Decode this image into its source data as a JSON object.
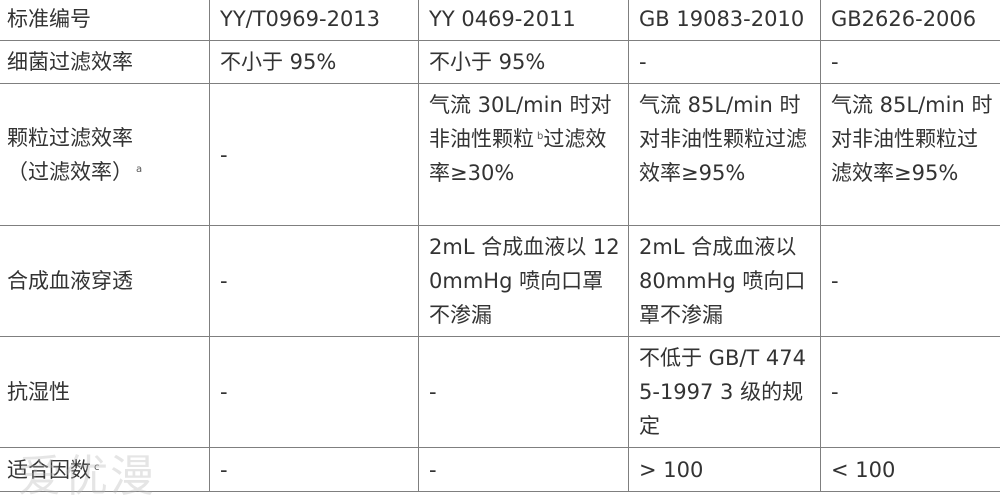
{
  "table": {
    "header": {
      "label": "标准编号",
      "cols": [
        "YY/T0969-2013",
        "YY 0469-2011",
        "GB 19083-2010",
        "GB2626-2006"
      ]
    },
    "rows": [
      {
        "label": "细菌过滤效率",
        "cells": [
          "不小于 95%",
          "不小于 95%",
          "-",
          "-"
        ]
      },
      {
        "label": "颗粒过滤效率",
        "label_line2": "（过滤效率）",
        "label_note": "a",
        "cells": [
          "-",
          "气流 30L/min 时对非油性颗粒",
          "气流 85L/min 时对非油性颗粒过滤效率≥95%",
          "气流 85L/min 时对非油性颗粒过滤效率≥95%"
        ],
        "cell2_note": "b",
        "cell2_tail": "过滤效率≥30%"
      },
      {
        "label": "合成血液穿透",
        "cells": [
          "-",
          "2mL 合成血液以 120mmHg 喷向口罩不渗漏",
          "2mL 合成血液以 80mmHg 喷向口罩不渗漏",
          "-"
        ]
      },
      {
        "label": "抗湿性",
        "cells": [
          "-",
          "-",
          "不低于 GB/T 4745-1997 3 级的规定",
          "-"
        ]
      },
      {
        "label": "适合因数",
        "label_note": "c",
        "cells": [
          "-",
          "-",
          "> 100",
          "< 100"
        ]
      }
    ]
  },
  "watermark": "爱优漫"
}
